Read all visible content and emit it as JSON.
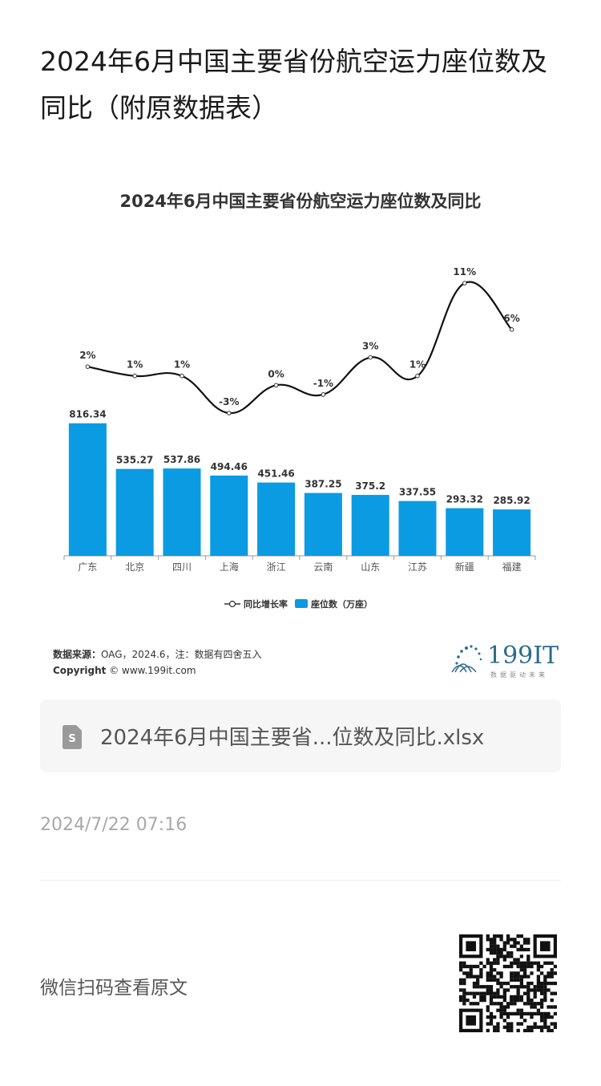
{
  "page": {
    "title": "2024年6月中国主要省份航空运力座位数及同比（附原数据表）",
    "date": "2024/7/22 07:16",
    "qr_text": "微信扫码查看原文"
  },
  "source": {
    "label": "数据来源：",
    "text": "OAG，2024.6，注：数据有四舍五入",
    "copyright_label": "Copyright",
    "copyright_text": "© www.199it.com"
  },
  "logo": {
    "text": "199IT",
    "slogan": "数据驱动未来",
    "color": "#2b6c8a"
  },
  "attachment": {
    "icon": "spreadsheet-file-icon",
    "name": "2024年6月中国主要省...位数及同比.xlsx"
  },
  "chart_data": {
    "type": "bar",
    "title": "2024年6月中国主要省份航空运力座位数及同比",
    "categories": [
      "广东",
      "北京",
      "四川",
      "上海",
      "浙江",
      "云南",
      "山东",
      "江苏",
      "新疆",
      "福建"
    ],
    "series": [
      {
        "name": "座位数（万座）",
        "type": "bar",
        "color": "#0a9be3",
        "values": [
          816.34,
          535.27,
          537.86,
          494.46,
          451.46,
          387.25,
          375.2,
          337.55,
          293.32,
          285.92
        ],
        "labels": [
          "816.34",
          "535.27",
          "537.86",
          "494.46",
          "451.46",
          "387.25",
          "375.2",
          "337.55",
          "293.32",
          "285.92"
        ]
      },
      {
        "name": "同比增长率",
        "type": "line",
        "color": "#111111",
        "values": [
          2,
          1,
          1,
          -3,
          0,
          -1,
          3,
          1,
          11,
          6
        ],
        "labels": [
          "2%",
          "1%",
          "1%",
          "-3%",
          "0%",
          "-1%",
          "3%",
          "1%",
          "11%",
          "6%"
        ]
      }
    ],
    "ylim_bar": [
      0,
      820
    ],
    "ylim_line": [
      -3,
      11
    ],
    "legend": "bottom",
    "grid": false
  }
}
